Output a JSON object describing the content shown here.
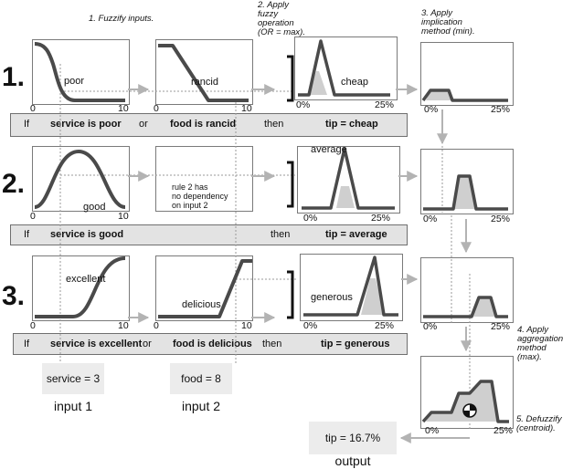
{
  "steps": {
    "step1": "1. Fuzzify inputs.",
    "step2": [
      "2. Apply",
      "fuzzy",
      "operation",
      "(OR = max)."
    ],
    "step3": [
      "3. Apply",
      "implication",
      "method (min)."
    ],
    "step4": [
      "4. Apply",
      "aggregation",
      "method (max)."
    ],
    "step5": [
      "5. Defuzzify",
      "(centroid)."
    ]
  },
  "rules": [
    {
      "number": "1.",
      "input1_mf": "poor",
      "input2_mf": "rancid",
      "output_mf": "cheap",
      "bar": {
        "if": "If",
        "clause1": "service is poor",
        "op": "or",
        "clause2": "food is rancid",
        "then": "then",
        "consequent": "tip = cheap"
      }
    },
    {
      "number": "2.",
      "input1_mf": "good",
      "input2_note": [
        "rule 2 has",
        "no dependency",
        "on input 2"
      ],
      "output_mf": "average",
      "bar": {
        "if": "If",
        "clause1": "service is good",
        "then": "then",
        "consequent": "tip = average"
      }
    },
    {
      "number": "3.",
      "input1_mf": "excellent",
      "input2_mf": "delicious",
      "output_mf": "generous",
      "bar": {
        "if": "If",
        "clause1": "service is excellent",
        "op": "or",
        "clause2": "food is delicious",
        "then": "then",
        "consequent": "tip = generous"
      }
    }
  ],
  "axis": {
    "input_min": "0",
    "input_max": "10",
    "output_min": "0%",
    "output_max": "25%"
  },
  "inputs": {
    "service": "service = 3",
    "food": "food = 8",
    "input1_caption": "input 1",
    "input2_caption": "input 2"
  },
  "output": {
    "value": "tip = 16.7%",
    "caption": "output"
  },
  "colors": {
    "curve": "#4a4a4a",
    "fill": "#cfcfcf",
    "arrow": "#b3b3b3",
    "bar": "#e3e3e3",
    "guide": "#9a9a9a"
  },
  "icons": [
    "centroid-icon"
  ]
}
